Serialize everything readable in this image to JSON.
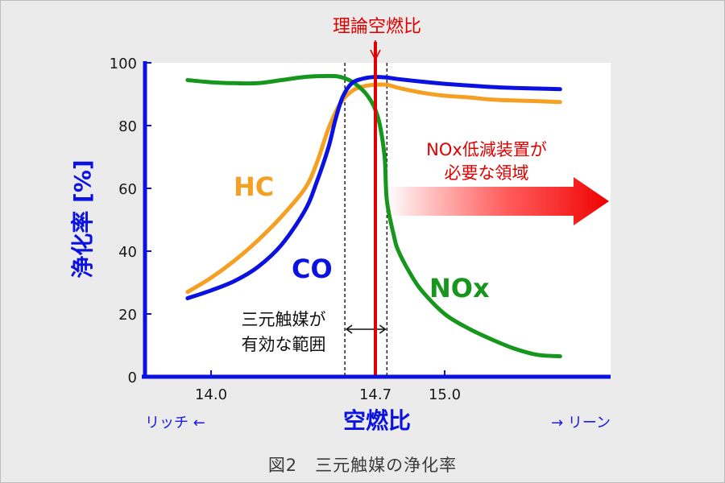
{
  "caption": "図2　三元触媒の浄化率",
  "chart_data": {
    "type": "line",
    "title": "",
    "xlabel": "空燃比",
    "ylabel": "浄化率 [%]",
    "ylim": [
      0,
      100
    ],
    "yticks": [
      "0",
      "20",
      "40",
      "60",
      "80",
      "100"
    ],
    "xticks": [
      {
        "x": 14.0,
        "label": "14.0"
      },
      {
        "x": 14.7,
        "label": "14.7"
      },
      {
        "x": 15.0,
        "label": "15.0"
      }
    ],
    "x_left_label": "リッチ ←",
    "x_right_label": "→ リーン",
    "grid": false,
    "series": [
      {
        "name": "HC",
        "color": "#f5a023",
        "x": [
          13.9,
          14.0,
          14.1,
          14.2,
          14.3,
          14.4,
          14.45,
          14.5,
          14.55,
          14.6,
          14.65,
          14.7,
          14.75,
          14.8,
          14.9,
          15.0,
          15.1,
          15.2,
          15.3,
          15.4,
          15.5
        ],
        "y": [
          27,
          31.5,
          37,
          43.5,
          51,
          60,
          68,
          79,
          87,
          91,
          92.5,
          93,
          93,
          92,
          90.5,
          89.5,
          89,
          88.3,
          88,
          87.8,
          87.5
        ]
      },
      {
        "name": "CO",
        "color": "#0b12e0",
        "x": [
          13.9,
          14.0,
          14.1,
          14.2,
          14.3,
          14.4,
          14.45,
          14.5,
          14.53,
          14.56,
          14.6,
          14.65,
          14.7,
          14.75,
          14.8,
          14.9,
          15.0,
          15.1,
          15.2,
          15.3,
          15.4,
          15.5
        ],
        "y": [
          25,
          27.5,
          30.5,
          35,
          42,
          53,
          62,
          73,
          82,
          89,
          93.5,
          95,
          95.5,
          95.3,
          94.8,
          94,
          93.3,
          92.8,
          92.3,
          92,
          91.8,
          91.6
        ]
      },
      {
        "name": "NOx",
        "color": "#17961e",
        "x": [
          13.9,
          14.0,
          14.1,
          14.2,
          14.3,
          14.4,
          14.5,
          14.55,
          14.6,
          14.65,
          14.68,
          14.7,
          14.72,
          14.74,
          14.75,
          14.78,
          14.8,
          14.85,
          14.9,
          15.0,
          15.1,
          15.2,
          15.3,
          15.4,
          15.5
        ],
        "y": [
          94.5,
          93.8,
          93.5,
          93.5,
          94.5,
          95.5,
          95.8,
          95.5,
          94,
          91,
          88,
          85,
          80,
          70,
          56,
          45,
          40,
          33,
          27.5,
          20,
          15.5,
          12,
          9,
          7,
          6.5
        ]
      }
    ],
    "annotations": {
      "stoich_label": "理論空燃比",
      "stoich_x": 14.7,
      "window_x": [
        14.57,
        14.75
      ],
      "window_label_1": "三元触媒が",
      "window_label_2": "有効な範囲",
      "nox_device_label_1": "NOx低減装置が",
      "nox_device_label_2": "必要な領域"
    }
  }
}
